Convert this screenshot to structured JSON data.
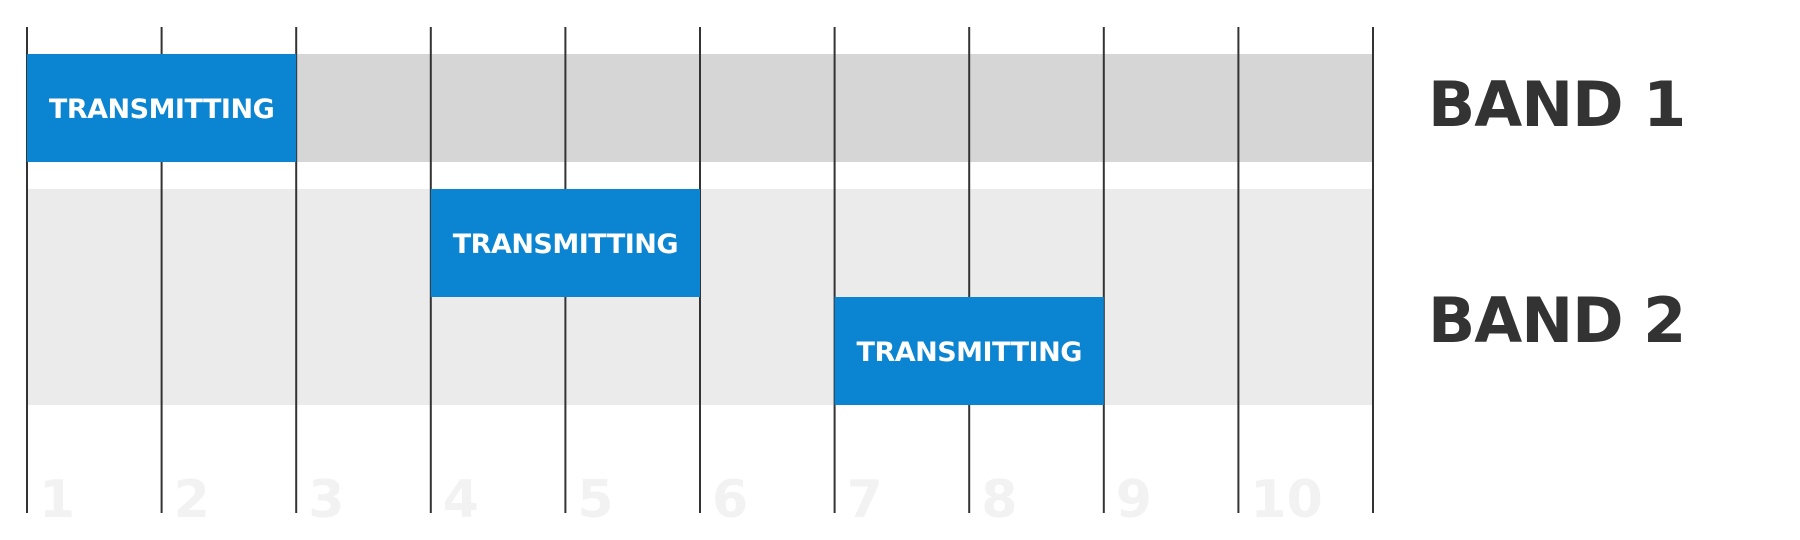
{
  "colors": {
    "band_1_fill": "#d6d6d6",
    "band_2_fill": "#ebebeb",
    "transmit_fill": "#0b84d1",
    "transmit_text": "#ffffff",
    "slot_line": "#333333",
    "slot_number": "#f2f2f2",
    "band_label": "#333333"
  },
  "slots": [
    "1",
    "2",
    "3",
    "4",
    "5",
    "6",
    "7",
    "8",
    "9",
    "10"
  ],
  "bands": [
    {
      "label": "BAND 1",
      "rows": 1
    },
    {
      "label": "BAND 2",
      "rows": 2
    }
  ],
  "transmissions": [
    {
      "label": "TRANSMITTING",
      "band": 1,
      "row": 1,
      "start_slot": 1,
      "end_slot": 2
    },
    {
      "label": "TRANSMITTING",
      "band": 2,
      "row": 1,
      "start_slot": 4,
      "end_slot": 5
    },
    {
      "label": "TRANSMITTING",
      "band": 2,
      "row": 2,
      "start_slot": 7,
      "end_slot": 8
    }
  ]
}
